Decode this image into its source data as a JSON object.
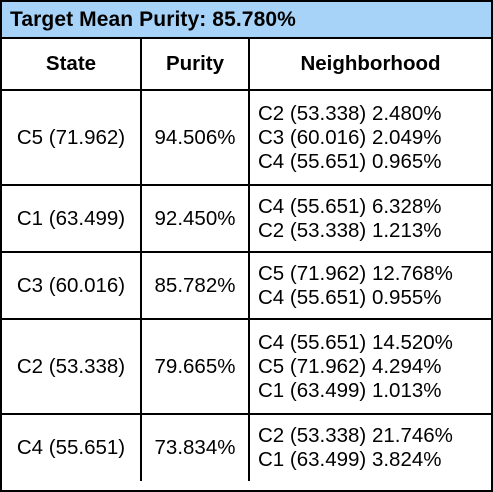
{
  "title": "Target Mean Purity: 85.780%",
  "headers": {
    "state": "State",
    "purity": "Purity",
    "neighborhood": "Neighborhood"
  },
  "rows": [
    {
      "state": "C5 (71.962)",
      "purity": "94.506%",
      "neighborhood": [
        "C2 (53.338) 2.480%",
        "C3 (60.016) 2.049%",
        "C4 (55.651) 0.965%"
      ]
    },
    {
      "state": "C1 (63.499)",
      "purity": "92.450%",
      "neighborhood": [
        "C4 (55.651) 6.328%",
        "C2 (53.338) 1.213%"
      ]
    },
    {
      "state": "C3 (60.016)",
      "purity": "85.782%",
      "neighborhood": [
        "C5 (71.962) 12.768%",
        "C4 (55.651) 0.955%"
      ]
    },
    {
      "state": "C2 (53.338)",
      "purity": "79.665%",
      "neighborhood": [
        "C4 (55.651) 14.520%",
        "C5 (71.962) 4.294%",
        "C1 (63.499) 1.013%"
      ]
    },
    {
      "state": "C4 (55.651)",
      "purity": "73.834%",
      "neighborhood": [
        "C2 (53.338) 21.746%",
        "C1 (63.499) 3.824%"
      ]
    }
  ],
  "colors": {
    "title_background": "#a6d3f7",
    "border": "#000000",
    "cell_background": "#ffffff"
  }
}
